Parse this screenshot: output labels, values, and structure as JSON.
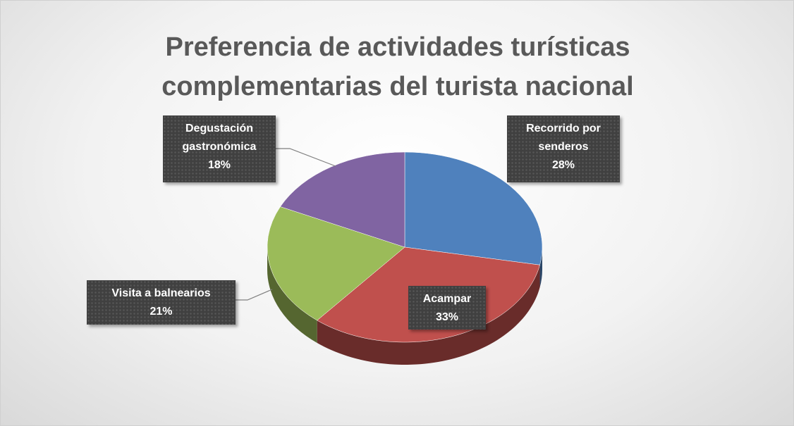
{
  "chart_data": {
    "type": "pie",
    "title": "Preferencia de actividades turísticas complementarias del turista nacional",
    "categories": [
      "Recorrido por senderos",
      "Acampar",
      "Visita a balnearios",
      "Degustación gastronómica"
    ],
    "values": [
      28,
      33,
      21,
      18
    ],
    "value_labels": [
      "28%",
      "33%",
      "21%",
      "18%"
    ],
    "colors": [
      "#4f81bd",
      "#c0504d",
      "#9bbb59",
      "#8064a2"
    ]
  }
}
